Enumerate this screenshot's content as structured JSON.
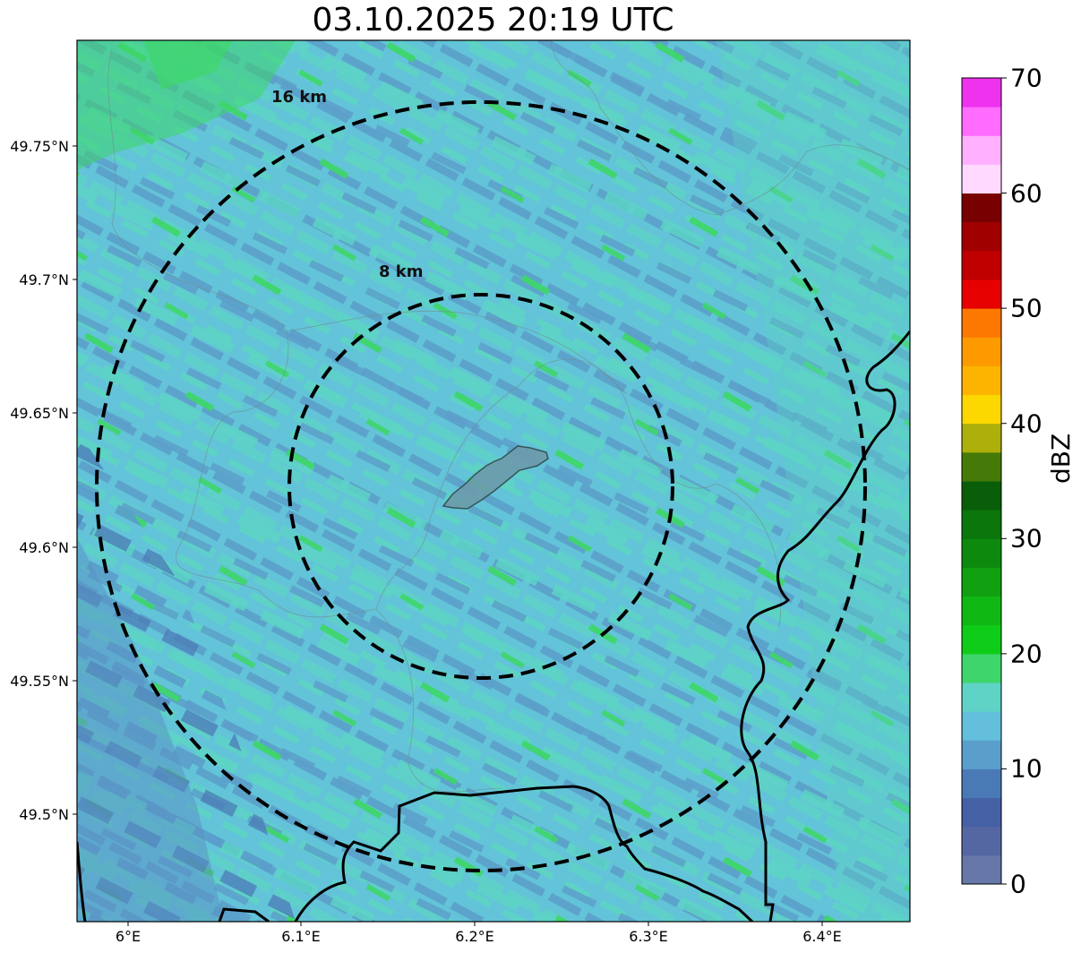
{
  "title": "03.10.2025 20:19 UTC",
  "map": {
    "lat_ticks": [
      "49.75°N",
      "49.7°N",
      "49.65°N",
      "49.6°N",
      "49.55°N",
      "49.5°N"
    ],
    "lon_ticks": [
      "6°E",
      "6.1°E",
      "6.2°E",
      "6.3°E",
      "6.4°E"
    ],
    "range_rings": [
      {
        "label": "16 km"
      },
      {
        "label": "8 km"
      }
    ],
    "colors": {
      "background_echo": "#63c3d8",
      "weak_echo": "#5b9ec9",
      "mid_echo": "#5dd5c4",
      "green_echo": "#3ed66b",
      "border": "#000000",
      "city_fill": "#6c9bab"
    }
  },
  "colorbar": {
    "label": "dBZ",
    "ticks": [
      "0",
      "10",
      "20",
      "30",
      "40",
      "50",
      "60",
      "70"
    ],
    "vmin": 0,
    "vmax": 70,
    "levels": [
      "#6677a8",
      "#5567a3",
      "#4660a5",
      "#4a7ab5",
      "#5a9ecb",
      "#63bfdb",
      "#5fd3c5",
      "#3ed66b",
      "#0fcc18",
      "#10b814",
      "#10a010",
      "#0d8a0d",
      "#0b760b",
      "#0a5e0a",
      "#457a08",
      "#adb00a",
      "#fcd800",
      "#fcb400",
      "#fc9a00",
      "#fc7800",
      "#e60000",
      "#c00000",
      "#a00000",
      "#780000",
      "#ffd9ff",
      "#ffb0ff",
      "#ff6cff",
      "#ee32ee"
    ]
  }
}
